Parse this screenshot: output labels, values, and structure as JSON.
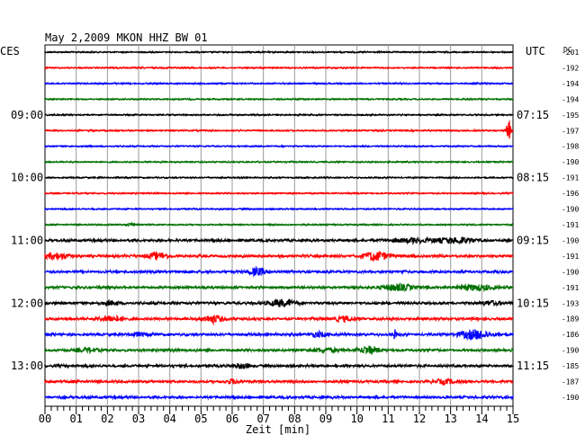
{
  "chart_data": {
    "type": "line",
    "title": "May 2,2009   MKON HHZ BW 01",
    "left_label": "CES",
    "right_label": "UTC",
    "dc_label": "DC",
    "xlabel": "Zeit [min]",
    "x_ticks": [
      "00",
      "01",
      "02",
      "03",
      "04",
      "05",
      "06",
      "07",
      "08",
      "09",
      "10",
      "11",
      "12",
      "13",
      "14",
      "15"
    ],
    "xlim": [
      0,
      15
    ],
    "grid": true,
    "trace_colors": [
      "#000000",
      "#ff0000",
      "#0000ff",
      "#007000"
    ],
    "left_time_labels": [
      {
        "row": 4,
        "label": "09:00"
      },
      {
        "row": 8,
        "label": "10:00"
      },
      {
        "row": 12,
        "label": "11:00"
      },
      {
        "row": 16,
        "label": "12:00"
      },
      {
        "row": 20,
        "label": "13:00"
      }
    ],
    "right_time_labels": [
      {
        "row": 4,
        "label": "07:15"
      },
      {
        "row": 8,
        "label": "08:15"
      },
      {
        "row": 12,
        "label": "09:15"
      },
      {
        "row": 16,
        "label": "10:15"
      },
      {
        "row": 20,
        "label": "11:15"
      }
    ],
    "dc_values": [
      "-201",
      "-192",
      "-194",
      "-194",
      "-195",
      "-197",
      "-198",
      "-190",
      "-191",
      "-196",
      "-190",
      "-191",
      "-190",
      "-191",
      "-190",
      "-191",
      "-193",
      "-189",
      "-186",
      "-190",
      "-185",
      "-187",
      "-190"
    ],
    "events": [
      {
        "row": 5,
        "minute": 14.85,
        "amp": 14,
        "width": 0.06
      },
      {
        "row": 11,
        "minute": 2.8,
        "amp": 1.5,
        "width": 0.15
      },
      {
        "row": 12,
        "minute": 13.2,
        "amp": 3,
        "width": 0.6
      },
      {
        "row": 12,
        "minute": 11.8,
        "amp": 2,
        "width": 0.8
      },
      {
        "row": 13,
        "minute": 0.4,
        "amp": 3.5,
        "width": 0.4
      },
      {
        "row": 13,
        "minute": 3.6,
        "amp": 3.5,
        "width": 0.35
      },
      {
        "row": 13,
        "minute": 10.6,
        "amp": 5,
        "width": 0.4
      },
      {
        "row": 14,
        "minute": 6.8,
        "amp": 4,
        "width": 0.25
      },
      {
        "row": 14,
        "minute": 11.5,
        "amp": 3,
        "width": 0.05
      },
      {
        "row": 15,
        "minute": 11.3,
        "amp": 3.5,
        "width": 0.5
      },
      {
        "row": 15,
        "minute": 13.8,
        "amp": 3,
        "width": 0.6
      },
      {
        "row": 16,
        "minute": 7.6,
        "amp": 3.5,
        "width": 0.45
      },
      {
        "row": 16,
        "minute": 2.1,
        "amp": 2,
        "width": 0.3
      },
      {
        "row": 16,
        "minute": 14.3,
        "amp": 2,
        "width": 0.3
      },
      {
        "row": 17,
        "minute": 2.1,
        "amp": 3,
        "width": 0.4
      },
      {
        "row": 17,
        "minute": 5.4,
        "amp": 4,
        "width": 0.35
      },
      {
        "row": 17,
        "minute": 9.6,
        "amp": 2.5,
        "width": 0.4
      },
      {
        "row": 18,
        "minute": 11.2,
        "amp": 6,
        "width": 0.05
      },
      {
        "row": 18,
        "minute": 13.8,
        "amp": 5,
        "width": 0.5
      },
      {
        "row": 18,
        "minute": 8.8,
        "amp": 2.5,
        "width": 0.3
      },
      {
        "row": 18,
        "minute": 3.0,
        "amp": 2,
        "width": 0.3
      },
      {
        "row": 19,
        "minute": 10.4,
        "amp": 4,
        "width": 0.35
      },
      {
        "row": 19,
        "minute": 9.0,
        "amp": 2.5,
        "width": 0.4
      },
      {
        "row": 19,
        "minute": 1.4,
        "amp": 2,
        "width": 0.4
      },
      {
        "row": 20,
        "minute": 6.3,
        "amp": 2.5,
        "width": 0.3
      },
      {
        "row": 21,
        "minute": 6.0,
        "amp": 2,
        "width": 0.2
      },
      {
        "row": 21,
        "minute": 12.8,
        "amp": 2,
        "width": 0.4
      },
      {
        "row": 23,
        "minute": 3.0,
        "amp": 4,
        "width": 0.15
      },
      {
        "row": 23,
        "minute": 4.7,
        "amp": 3,
        "width": 0.2
      }
    ]
  }
}
